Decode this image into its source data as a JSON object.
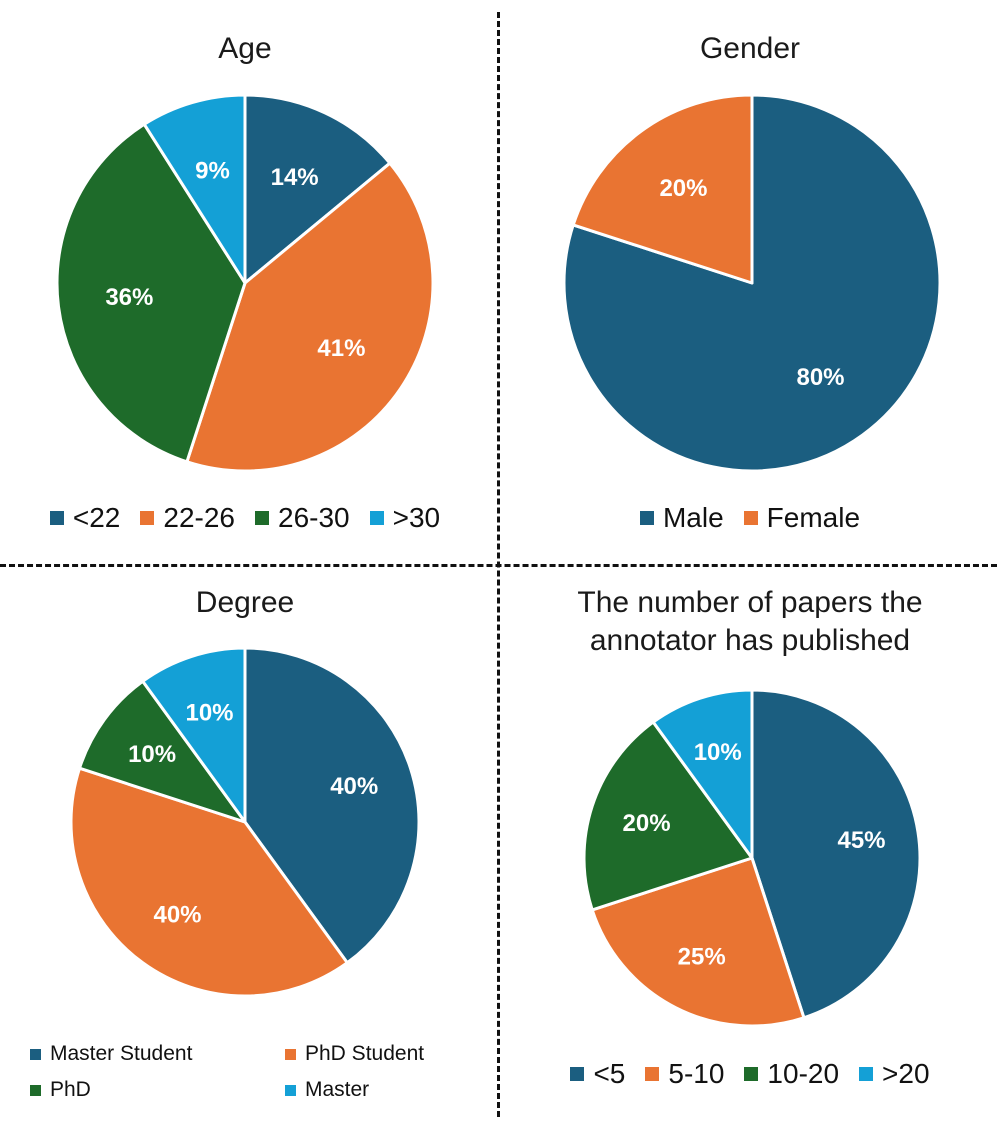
{
  "chart_data": [
    {
      "type": "pie",
      "title": "Age",
      "categories": [
        "<22",
        "22-26",
        "26-30",
        ">30"
      ],
      "values": [
        14,
        41,
        36,
        9
      ],
      "labels": [
        "14%",
        "41%",
        "36%",
        "9%"
      ],
      "colors": [
        "#1b5e80",
        "#e97432",
        "#1e6b2a",
        "#14a0d6"
      ]
    },
    {
      "type": "pie",
      "title": "Gender",
      "categories": [
        "Male",
        "Female"
      ],
      "values": [
        80,
        20
      ],
      "labels": [
        "80%",
        "20%"
      ],
      "colors": [
        "#1b5e80",
        "#e97432"
      ]
    },
    {
      "type": "pie",
      "title": "Degree",
      "categories": [
        "Master Student",
        "PhD Student",
        "PhD",
        "Master"
      ],
      "values": [
        40,
        40,
        10,
        10
      ],
      "labels": [
        "40%",
        "40%",
        "10%",
        "10%"
      ],
      "colors": [
        "#1b5e80",
        "#e97432",
        "#1e6b2a",
        "#14a0d6"
      ]
    },
    {
      "type": "pie",
      "title": "The number of papers the annotator has published",
      "title_lines": [
        "The number of papers the",
        "annotator has published"
      ],
      "categories": [
        "<5",
        "5-10",
        "10-20",
        ">20"
      ],
      "values": [
        45,
        25,
        20,
        10
      ],
      "labels": [
        "45%",
        "25%",
        "20%",
        "10%"
      ],
      "colors": [
        "#1b5e80",
        "#e97432",
        "#1e6b2a",
        "#14a0d6"
      ]
    }
  ]
}
